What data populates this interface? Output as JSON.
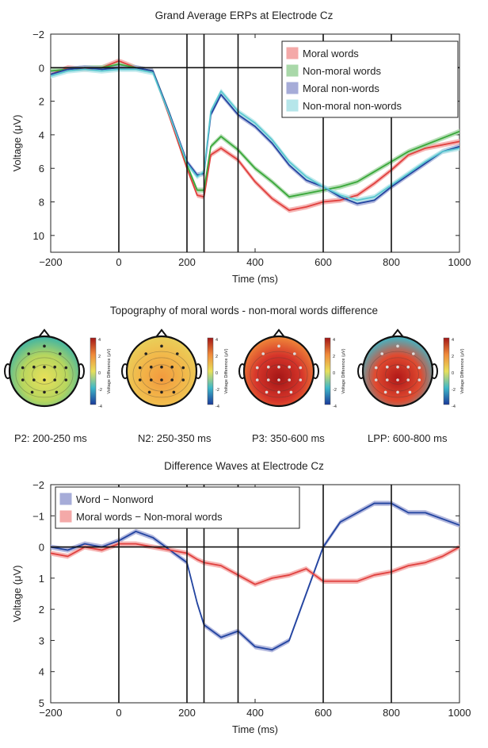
{
  "chart_data": [
    {
      "type": "line",
      "title": "Grand Average ERPs at Electrode Cz",
      "xlabel": "Time (ms)",
      "ylabel": "Voltage (μV)",
      "xlim": [
        -200,
        1000
      ],
      "ylim": [
        -2,
        11
      ],
      "y_inverted": true,
      "xticks": [
        -200,
        0,
        200,
        400,
        600,
        800,
        1000
      ],
      "yticks": [
        -2,
        0,
        2,
        4,
        6,
        8,
        10
      ],
      "vlines": [
        0,
        200,
        250,
        350,
        600,
        800
      ],
      "hline": 0,
      "legend_position": "top-right",
      "x": [
        -200,
        -150,
        -100,
        -50,
        0,
        50,
        100,
        150,
        200,
        230,
        250,
        270,
        300,
        350,
        400,
        450,
        500,
        550,
        600,
        650,
        700,
        750,
        800,
        850,
        900,
        950,
        1000
      ],
      "series": [
        {
          "name": "Moral words",
          "color": "#e0403e",
          "band": "#f4a9a8",
          "values": [
            0.4,
            0.0,
            0.1,
            0.0,
            -0.4,
            0.0,
            0.2,
            3.0,
            6.0,
            7.6,
            7.7,
            5.2,
            4.8,
            5.5,
            6.8,
            7.8,
            8.5,
            8.3,
            8.0,
            7.9,
            7.6,
            6.9,
            6.1,
            5.2,
            4.8,
            4.6,
            4.4
          ]
        },
        {
          "name": "Non-moral words",
          "color": "#3aa83a",
          "band": "#a9d8a9",
          "values": [
            0.2,
            0.1,
            0.0,
            0.0,
            -0.2,
            0.0,
            0.2,
            2.8,
            5.8,
            7.3,
            7.3,
            4.7,
            4.1,
            4.9,
            6.0,
            6.8,
            7.7,
            7.5,
            7.3,
            7.1,
            6.8,
            6.2,
            5.6,
            5.0,
            4.6,
            4.2,
            3.8
          ]
        },
        {
          "name": "Moral non-words",
          "color": "#2244a0",
          "band": "#a6acd8",
          "values": [
            0.4,
            0.1,
            0.0,
            0.1,
            0.0,
            0.0,
            0.2,
            2.8,
            5.6,
            6.4,
            6.3,
            2.8,
            1.6,
            2.8,
            3.5,
            4.5,
            5.8,
            6.7,
            7.1,
            7.7,
            8.1,
            7.9,
            7.1,
            6.4,
            5.7,
            5.0,
            4.7
          ]
        },
        {
          "name": "Non-moral non-words",
          "color": "#5ac8d0",
          "band": "#b6e6ea",
          "values": [
            0.5,
            0.2,
            0.1,
            0.2,
            0.1,
            0.1,
            0.3,
            2.9,
            5.7,
            6.5,
            6.2,
            2.6,
            1.4,
            2.6,
            3.3,
            4.3,
            5.6,
            6.5,
            7.1,
            7.6,
            7.9,
            7.7,
            7.0,
            6.3,
            5.6,
            5.0,
            4.8
          ]
        }
      ]
    },
    {
      "type": "heatmap",
      "title": "Topography of moral words - non-moral words difference",
      "colorbar_label": "Voltage Difference (μV)",
      "colorbar_ticks": [
        "4",
        "2",
        "0",
        "-2",
        "-4"
      ],
      "maps": [
        {
          "label": "P2: 200-250 ms",
          "center": "#e8e05a",
          "mid": "#b7d65e",
          "edge": "#3cb3a6"
        },
        {
          "label": "N2: 250-350 ms",
          "center": "#f29a3e",
          "mid": "#f2b84a",
          "edge": "#e8d05a"
        },
        {
          "label": "P3: 350-600 ms",
          "center": "#a31616",
          "mid": "#d6352a",
          "edge": "#f08a3a"
        },
        {
          "label": "LPP: 600-800 ms",
          "center": "#b01818",
          "mid": "#e04a30",
          "edge": "#3fb8c8"
        }
      ]
    },
    {
      "type": "line",
      "title": "Difference Waves at Electrode Cz",
      "xlabel": "Time (ms)",
      "ylabel": "Voltage (μV)",
      "xlim": [
        -200,
        1000
      ],
      "ylim": [
        -2,
        5
      ],
      "y_inverted": true,
      "xticks": [
        -200,
        0,
        200,
        400,
        600,
        800,
        1000
      ],
      "yticks": [
        -2,
        -1,
        0,
        1,
        2,
        3,
        4,
        5
      ],
      "vlines": [
        0,
        200,
        250,
        350,
        600,
        800
      ],
      "hline": 0,
      "legend_position": "top-left",
      "x": [
        -200,
        -150,
        -100,
        -50,
        0,
        50,
        100,
        150,
        200,
        230,
        250,
        300,
        350,
        400,
        450,
        500,
        550,
        600,
        650,
        700,
        750,
        800,
        850,
        900,
        950,
        1000
      ],
      "series": [
        {
          "name": "Word - Nonword",
          "color": "#2244a0",
          "band": "#a6acd8",
          "values": [
            0.0,
            0.1,
            -0.1,
            0.0,
            -0.2,
            -0.5,
            -0.3,
            0.1,
            0.5,
            1.8,
            2.5,
            2.9,
            2.7,
            3.2,
            3.3,
            3.0,
            1.5,
            0.0,
            -0.8,
            -1.1,
            -1.4,
            -1.4,
            -1.1,
            -1.1,
            -0.9,
            -0.7
          ]
        },
        {
          "name": "Moral words - Non-moral words",
          "color": "#e0403e",
          "band": "#f4a9a8",
          "values": [
            0.2,
            0.3,
            0.0,
            0.1,
            -0.1,
            -0.1,
            0.0,
            0.1,
            0.2,
            0.4,
            0.5,
            0.6,
            0.9,
            1.2,
            1.0,
            0.9,
            0.7,
            1.1,
            1.1,
            1.1,
            0.9,
            0.8,
            0.6,
            0.5,
            0.3,
            0.0
          ]
        }
      ]
    }
  ]
}
